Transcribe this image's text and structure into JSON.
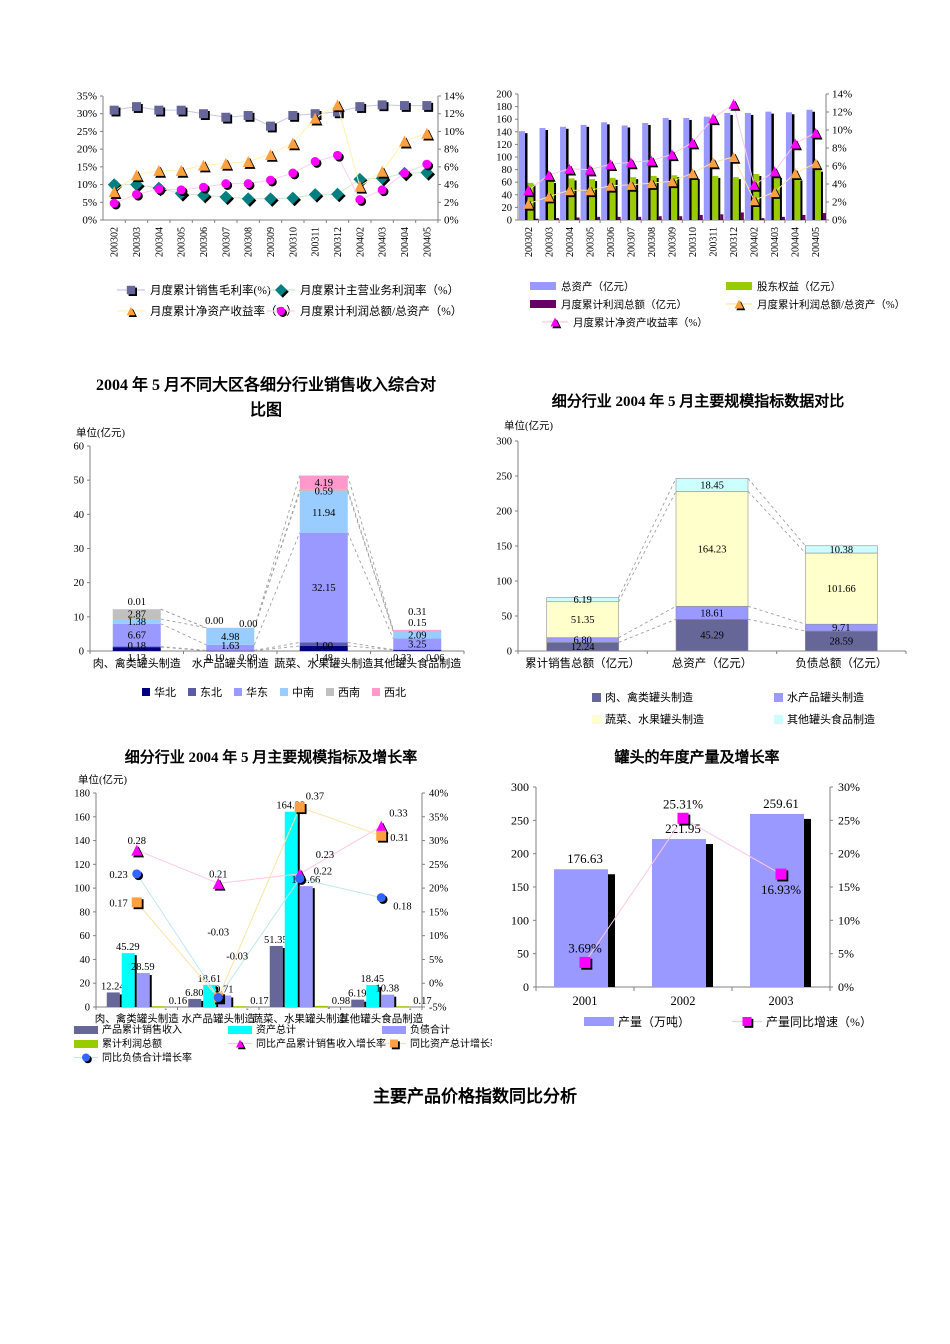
{
  "page": {
    "background": "#ffffff",
    "bottom_title": "主要产品价格指数同比分析"
  },
  "chart_data": [
    {
      "id": "monthly-profitability-ratios",
      "type": "line",
      "title": "",
      "categories": [
        "200302",
        "200303",
        "200304",
        "200305",
        "200306",
        "200307",
        "200308",
        "200309",
        "200310",
        "200311",
        "200312",
        "200402",
        "200403",
        "200404",
        "200405"
      ],
      "left_axis": {
        "min": 0,
        "max": 35,
        "step": 5,
        "format": "percent"
      },
      "right_axis": {
        "min": 0,
        "max": 14,
        "step": 2,
        "format": "percent"
      },
      "legend_position": "bottom",
      "series": [
        {
          "name": "月度累计销售毛利率(%)",
          "axis": "left",
          "marker": "square",
          "color": "#666699",
          "line_color": "#C6C6E7",
          "values": [
            31,
            32,
            31,
            31,
            30,
            29,
            29.5,
            26.5,
            29.5,
            30,
            30.5,
            32,
            32.5,
            32.3,
            32.3
          ]
        },
        {
          "name": "月度累计主营业务利润率（%）",
          "axis": "left",
          "marker": "diamond",
          "color": "#008080",
          "line_color": "#CCE9CC",
          "values": [
            10,
            10,
            9,
            7.5,
            7,
            6.5,
            6,
            6,
            6.2,
            7.2,
            7.3,
            11.5,
            11.8,
            13.2,
            13.4
          ]
        },
        {
          "name": "月度累计净资产收益率（%）",
          "axis": "right",
          "marker": "triangle",
          "color": "#FFA040",
          "line_color": "#FFF2B0",
          "values": [
            3.2,
            5.1,
            5.6,
            5.6,
            6.2,
            6.4,
            6.6,
            7.4,
            8.7,
            11.5,
            13,
            3.8,
            5.5,
            8.9,
            9.8
          ]
        },
        {
          "name": "月度累计利润总额/总资产（%）",
          "axis": "right",
          "marker": "circle",
          "color": "#FF00FF",
          "line_color": "#FFD0EC",
          "values": [
            1.9,
            2.9,
            3.5,
            3.4,
            3.7,
            4.1,
            4.1,
            4.5,
            5.3,
            6.6,
            7.3,
            2.3,
            3.4,
            5.3,
            6.3
          ]
        }
      ]
    },
    {
      "id": "assets-equity-profit-trend",
      "type": "bar-line",
      "title": "",
      "categories": [
        "200302",
        "200303",
        "200304",
        "200305",
        "200306",
        "200307",
        "200308",
        "200309",
        "200310",
        "200311",
        "200312",
        "200402",
        "200403",
        "200404",
        "200405"
      ],
      "left_axis": {
        "min": 0,
        "max": 200,
        "step": 20
      },
      "right_axis": {
        "min": 0,
        "max": 14,
        "step": 2,
        "format": "percent"
      },
      "bar_series": [
        {
          "name": "总资产（亿元）",
          "color": "#9999FF",
          "values": [
            141,
            146,
            148,
            151,
            155,
            150,
            154,
            162,
            162,
            164,
            170,
            170,
            172,
            171,
            175
          ]
        },
        {
          "name": "股东权益（亿元）",
          "color": "#99CC00",
          "values": [
            59,
            62,
            66,
            65,
            67,
            68,
            70,
            71,
            68,
            70,
            68,
            73,
            70,
            66,
            80
          ]
        },
        {
          "name": "月度累计利润总额（亿元）",
          "color": "#660066",
          "values": [
            2,
            3,
            4,
            5,
            5,
            5,
            6,
            6,
            8,
            9,
            12,
            3,
            5,
            8,
            11
          ]
        }
      ],
      "line_series": [
        {
          "name": "月度累计利润总额/总资产（%）",
          "marker": "triangle",
          "color": "#FFA040",
          "line_color": "#FFE8A0",
          "values": [
            1.8,
            2.6,
            3.3,
            3.3,
            3.8,
            3.9,
            4.1,
            4.3,
            5.2,
            6.4,
            7,
            2.2,
            3.1,
            5.2,
            6.3
          ]
        },
        {
          "name": "月度累计净资产收益率（%）",
          "marker": "triangle",
          "color": "#FF00FF",
          "line_color": "#FFC8E8",
          "values": [
            3.3,
            5,
            5.7,
            5.6,
            6.2,
            6.4,
            6.6,
            7.3,
            8.6,
            11.3,
            12.9,
            3.9,
            5.4,
            8.5,
            9.7
          ]
        }
      ]
    },
    {
      "id": "regional-sales-by-subsector",
      "type": "stacked-bar",
      "title": "2004 年 5 月不同大区各细分行业销售收入综合对比图",
      "unit_label": "单位(亿元)",
      "categories": [
        "肉、禽类罐头制造",
        "水产品罐头制造",
        "蔬菜、水果罐头制造",
        "其他罐头食品制造"
      ],
      "left_axis": {
        "min": 0,
        "max": 60,
        "step": 10
      },
      "series": [
        {
          "name": "华北",
          "color": "#000080",
          "values": [
            1.13,
            0.1,
            1.48,
            0.33
          ]
        },
        {
          "name": "东北",
          "color": "#5A5AA5",
          "values": [
            0.18,
            0.09,
            1.0,
            0.06
          ]
        },
        {
          "name": "华东",
          "color": "#9999FF",
          "values": [
            6.67,
            1.63,
            32.15,
            3.25
          ]
        },
        {
          "name": "中南",
          "color": "#99CCFF",
          "values": [
            1.38,
            4.98,
            11.94,
            2.09
          ]
        },
        {
          "name": "西南",
          "color": "#C0C0C0",
          "values": [
            2.87,
            0.0,
            0.59,
            0.15
          ]
        },
        {
          "name": "西北",
          "color": "#FF99CC",
          "values": [
            0.01,
            0.0,
            4.19,
            0.31
          ]
        }
      ]
    },
    {
      "id": "subsector-scale-indicators",
      "type": "stacked-bar",
      "title": "细分行业 2004 年 5 月主要规模指标数据对比",
      "unit_label": "单位(亿元)",
      "categories": [
        "累计销售总额（亿元）",
        "总资产（亿元）",
        "负债总额（亿元）"
      ],
      "left_axis": {
        "min": 0,
        "max": 300,
        "step": 50
      },
      "series": [
        {
          "name": "肉、禽类罐头制造",
          "color": "#666699",
          "values": [
            12.24,
            45.29,
            28.59
          ]
        },
        {
          "name": "水产品罐头制造",
          "color": "#9999FF",
          "values": [
            6.8,
            18.61,
            9.71
          ]
        },
        {
          "name": "蔬菜、水果罐头制造",
          "color": "#FFFFCC",
          "values": [
            51.35,
            164.23,
            101.66
          ]
        },
        {
          "name": "其他罐头食品制造",
          "color": "#CCFFFF",
          "values": [
            6.19,
            18.45,
            10.38
          ]
        }
      ]
    },
    {
      "id": "subsector-scale-and-growth",
      "type": "bar-marker",
      "title": "细分行业 2004 年 5 月主要规模指标及增长率",
      "unit_label": "单位(亿元)",
      "categories": [
        "肉、禽类罐头制造",
        "水产品罐头制造",
        "蔬菜、水果罐头制造",
        "其他罐头食品制造"
      ],
      "left_axis": {
        "min": 0,
        "max": 180,
        "step": 20
      },
      "right_axis": {
        "min": -5,
        "max": 40,
        "step": 5,
        "format": "percent"
      },
      "bar_series": [
        {
          "name": "产品累计销售收入",
          "color": "#666699",
          "values": [
            12.24,
            6.8,
            51.35,
            6.19
          ]
        },
        {
          "name": "资产总计",
          "color": "#00FFFF",
          "values": [
            45.29,
            18.61,
            164.23,
            18.45
          ]
        },
        {
          "name": "负债合计",
          "color": "#9999FF",
          "values": [
            28.59,
            9.71,
            101.66,
            10.38
          ]
        },
        {
          "name": "累计利润总额",
          "color": "#99CC00",
          "values": [
            0.16,
            0.17,
            0.98,
            0.17
          ]
        }
      ],
      "marker_series": [
        {
          "name": "同比产品累计销售收入增长率",
          "marker": "triangle",
          "color": "#FF00FF",
          "line_color": "#FFC8E8",
          "values": [
            0.28,
            0.21,
            0.23,
            0.33
          ]
        },
        {
          "name": "同比资产总计增长率",
          "marker": "square",
          "color": "#FFA040",
          "line_color": "#FFE2A8",
          "values": [
            0.17,
            -0.03,
            0.37,
            0.31
          ]
        },
        {
          "name": "同比负债合计增长率",
          "marker": "circle",
          "color": "#3366FF",
          "line_color": "#BFE8EE",
          "values": [
            0.23,
            -0.03,
            0.22,
            0.18
          ]
        }
      ]
    },
    {
      "id": "annual-output-and-growth",
      "type": "bar-marker",
      "title": "罐头的年度产量及增长率",
      "categories": [
        "2001",
        "2002",
        "2003"
      ],
      "left_axis": {
        "min": 0,
        "max": 300,
        "step": 50
      },
      "right_axis": {
        "min": 0,
        "max": 30,
        "step": 5,
        "format": "percent"
      },
      "bar_series": [
        {
          "name": "产量（万吨）",
          "color": "#9999FF",
          "values": [
            176.63,
            221.95,
            259.61
          ]
        }
      ],
      "marker_series": [
        {
          "name": "产量同比增速（%）",
          "marker": "square",
          "color": "#FF00FF",
          "line_color": "#FFC8E8",
          "values": [
            3.69,
            25.31,
            16.93
          ]
        }
      ]
    }
  ]
}
